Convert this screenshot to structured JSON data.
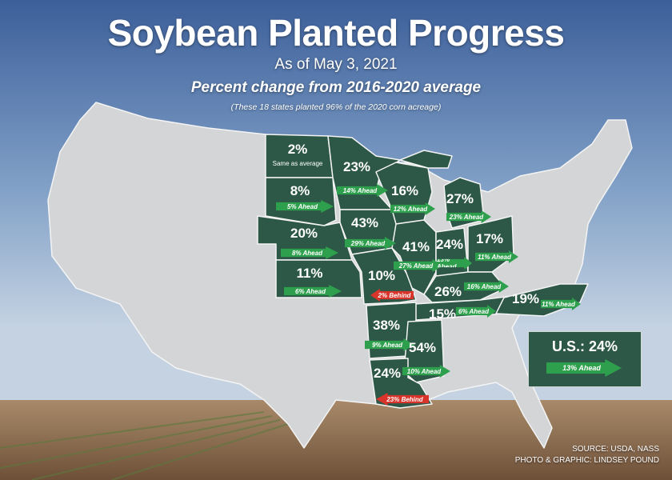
{
  "header": {
    "title": "Soybean Planted Progress",
    "date": "As of May 3, 2021",
    "subtitle": "Percent change from 2016-2020 average",
    "note": "(These 18 states planted 96% of the 2020 corn acreage)"
  },
  "states": [
    {
      "id": "nd",
      "state": "North Dakota",
      "pct": "2%",
      "change": "Same as average",
      "direction": "same"
    },
    {
      "id": "sd",
      "state": "South Dakota",
      "pct": "8%",
      "change": "5% Ahead",
      "direction": "ahead"
    },
    {
      "id": "ne",
      "state": "Nebraska",
      "pct": "20%",
      "change": "8% Ahead",
      "direction": "ahead"
    },
    {
      "id": "ks",
      "state": "Kansas",
      "pct": "11%",
      "change": "6% Ahead",
      "direction": "ahead"
    },
    {
      "id": "mn",
      "state": "Minnesota",
      "pct": "23%",
      "change": "14% Ahead",
      "direction": "ahead"
    },
    {
      "id": "ia",
      "state": "Iowa",
      "pct": "43%",
      "change": "29% Ahead",
      "direction": "ahead"
    },
    {
      "id": "mo",
      "state": "Missouri",
      "pct": "10%",
      "change": "2% Behind",
      "direction": "behind"
    },
    {
      "id": "wi",
      "state": "Wisconsin",
      "pct": "16%",
      "change": "12% Ahead",
      "direction": "ahead"
    },
    {
      "id": "mi",
      "state": "Michigan",
      "pct": "27%",
      "change": "23% Ahead",
      "direction": "ahead"
    },
    {
      "id": "il",
      "state": "Illinois",
      "pct": "41%",
      "change": "27% Ahead",
      "direction": "ahead"
    },
    {
      "id": "in",
      "state": "Indiana",
      "pct": "24%",
      "change": "13% Ahead",
      "direction": "ahead"
    },
    {
      "id": "oh",
      "state": "Ohio",
      "pct": "17%",
      "change": "11% Ahead",
      "direction": "ahead"
    },
    {
      "id": "ky",
      "state": "Kentucky",
      "pct": "26%",
      "change": "16% Ahead",
      "direction": "ahead"
    },
    {
      "id": "tn",
      "state": "Tennessee",
      "pct": "15%",
      "change": "6% Ahead",
      "direction": "ahead"
    },
    {
      "id": "nc",
      "state": "North Carolina",
      "pct": "19%",
      "change": "11% Ahead",
      "direction": "ahead"
    },
    {
      "id": "ar",
      "state": "Arkansas",
      "pct": "38%",
      "change": "9% Ahead",
      "direction": "ahead"
    },
    {
      "id": "ms",
      "state": "Mississippi",
      "pct": "54%",
      "change": "10% Ahead",
      "direction": "ahead"
    },
    {
      "id": "la",
      "state": "Louisiana",
      "pct": "24%",
      "change": "23% Behind",
      "direction": "behind"
    }
  ],
  "us_total": {
    "label": "U.S.: 24%",
    "change": "13% Ahead",
    "direction": "ahead"
  },
  "credits": {
    "source": "SOURCE: USDA, NASS",
    "photo": "PHOTO & GRAPHIC: LINDSEY POUND"
  },
  "colors": {
    "state_highlight": "#2d5847",
    "state_other": "#d3d5d7",
    "ahead_arrow": "#2ea04d",
    "behind_arrow": "#d8342b"
  }
}
